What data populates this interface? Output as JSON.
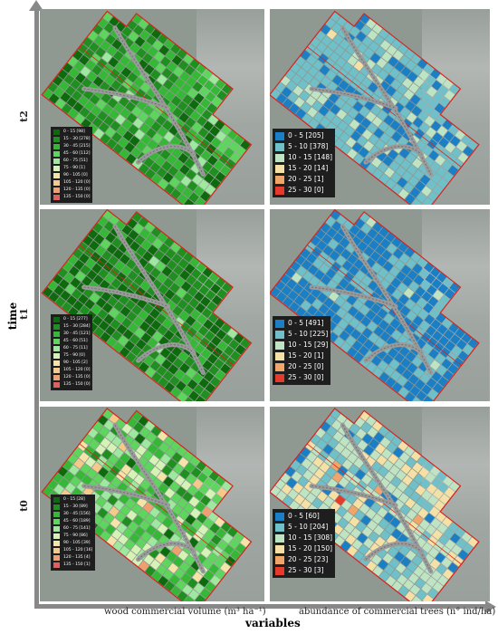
{
  "axes": {
    "y_title": "time",
    "x_title": "variables",
    "rows": [
      "t2",
      "t1",
      "t0"
    ],
    "columns": [
      "wood commercial volume (m³ ha⁻¹)",
      "abundance of commercial trees (n° ind/ha)"
    ]
  },
  "colors": {
    "volume": [
      "#0d6b0d",
      "#1f8f1f",
      "#35b835",
      "#5ed65e",
      "#9fe89f",
      "#d6f2b6",
      "#f5e4a8",
      "#f5c98a",
      "#f0a070",
      "#e06060"
    ],
    "abundance": [
      "#1a7fc4",
      "#6fc0c8",
      "#bfe4c4",
      "#f5e1a6",
      "#f0a668",
      "#e53b2c"
    ],
    "boundary": "#d9231c",
    "road": "#9a9a9a"
  },
  "panels": {
    "t2": {
      "volume": {
        "legend": [
          "0 - 15 [98]",
          "15 - 30 [278]",
          "30 - 45 [215]",
          "45 - 60 [112]",
          "60 - 75 [51]",
          "75 - 90 [1]",
          "90 - 105 [0]",
          "105 - 120 [0]",
          "120 - 135 [0]",
          "135 - 150 [0]"
        ],
        "counts": [
          98,
          278,
          215,
          112,
          51,
          1,
          0,
          0,
          0,
          0
        ]
      },
      "abundance": {
        "legend": [
          "0 - 5 [205]",
          "5 - 10 [378]",
          "10 - 15 [148]",
          "15 - 20 [14]",
          "20 - 25 [1]",
          "25 - 30 [0]"
        ],
        "counts": [
          205,
          378,
          148,
          14,
          1,
          0
        ]
      }
    },
    "t1": {
      "volume": {
        "legend": [
          "0 - 15 [277]",
          "15 - 30 [284]",
          "30 - 45 [121]",
          "45 - 60 [51]",
          "60 - 75 [11]",
          "75 - 90 [0]",
          "90 - 105 [2]",
          "105 - 120 [0]",
          "120 - 135 [0]",
          "135 - 150 [0]"
        ],
        "counts": [
          277,
          284,
          121,
          51,
          11,
          0,
          2,
          0,
          0,
          0
        ]
      },
      "abundance": {
        "legend": [
          "0 - 5 [491]",
          "5 - 10 [225]",
          "10 - 15 [29]",
          "15 - 20 [1]",
          "20 - 25 [0]",
          "25 - 30 [0]"
        ],
        "counts": [
          491,
          225,
          29,
          1,
          0,
          0
        ]
      }
    },
    "t0": {
      "volume": {
        "legend": [
          "0 - 15 [28]",
          "15 - 30 [89]",
          "30 - 45 [156]",
          "45 - 60 [189]",
          "60 - 75 [141]",
          "75 - 90 [86]",
          "90 - 105 [39]",
          "105 - 120 [16]",
          "120 - 135 [4]",
          "135 - 150 [1]"
        ],
        "counts": [
          28,
          89,
          156,
          189,
          141,
          86,
          39,
          16,
          4,
          1
        ]
      },
      "abundance": {
        "legend": [
          "0 - 5 [60]",
          "5 - 10 [204]",
          "10 - 15 [308]",
          "15 - 20 [150]",
          "20 - 25 [23]",
          "25 - 30 [3]"
        ],
        "counts": [
          60,
          204,
          308,
          150,
          23,
          3
        ]
      }
    }
  }
}
